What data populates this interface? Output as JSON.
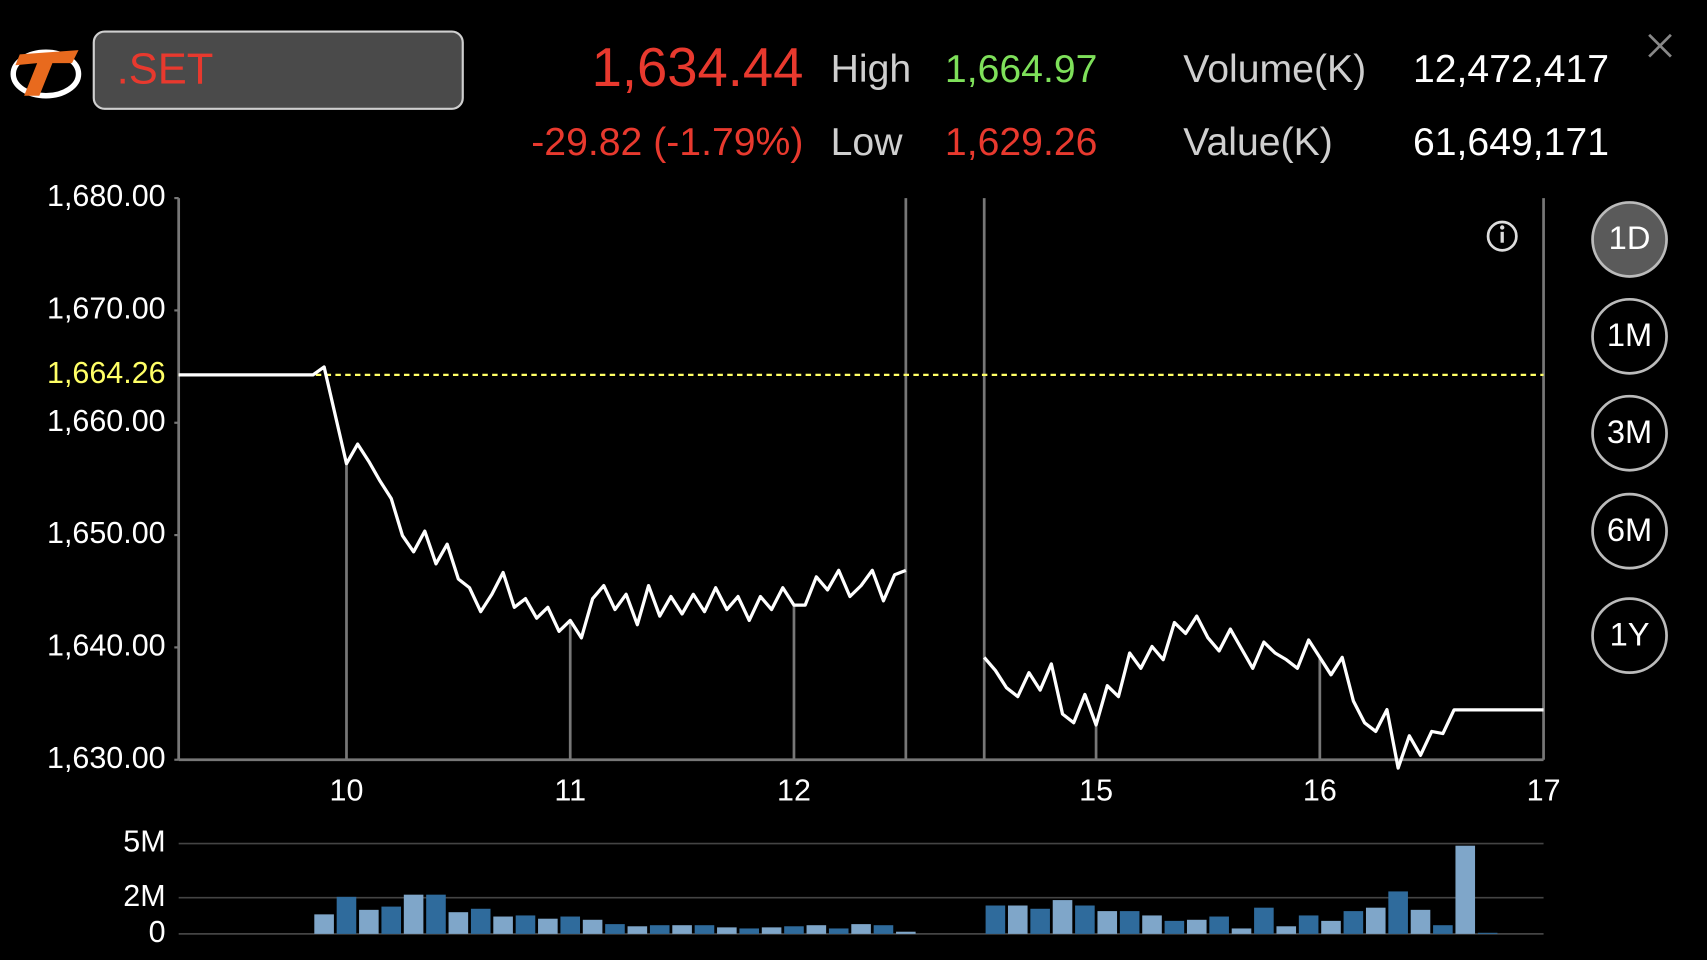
{
  "header": {
    "symbol": ".SET",
    "last": "1,634.44",
    "change": "-29.82 (-1.79%)",
    "high_label": "High",
    "high": "1,664.97",
    "low_label": "Low",
    "low": "1,629.26",
    "volume_label": "Volume(K)",
    "volume": "12,472,417",
    "value_label": "Value(K)",
    "value": "61,649,171"
  },
  "periods": [
    "1D",
    "1M",
    "3M",
    "6M",
    "1Y"
  ],
  "chart_data": [
    {
      "type": "line",
      "color": "#ffffff",
      "x": [
        9.25,
        9.85,
        9.9,
        10,
        10.05,
        10.1,
        10.15,
        10.2,
        10.25,
        10.3,
        10.35,
        10.4,
        10.45,
        10.5,
        10.55,
        10.6,
        10.65,
        10.7,
        10.75,
        10.8,
        10.85,
        10.9,
        10.95,
        11,
        11.05,
        11.1,
        11.15,
        11.2,
        11.25,
        11.3,
        11.35,
        11.4,
        11.45,
        11.5,
        11.55,
        11.6,
        11.65,
        11.7,
        11.75,
        11.8,
        11.85,
        11.9,
        11.95,
        12,
        12.05,
        12.1,
        12.15,
        12.2,
        12.25,
        12.3,
        12.35,
        12.4,
        12.45,
        12.5,
        13.5,
        14.5,
        14.55,
        14.6,
        14.65,
        14.7,
        14.75,
        14.8,
        14.85,
        14.9,
        14.95,
        15,
        15.05,
        15.1,
        15.15,
        15.2,
        15.25,
        15.3,
        15.35,
        15.4,
        15.45,
        15.5,
        15.55,
        15.6,
        15.65,
        15.7,
        15.75,
        15.8,
        15.85,
        15.9,
        15.95,
        16,
        16.05,
        16.1,
        16.15,
        16.2,
        16.25,
        16.3,
        16.35,
        16.4,
        16.45,
        16.5,
        16.55,
        16.6,
        17
      ],
      "values": [
        1664.26,
        1664.26,
        1664.97,
        1656.36,
        1658.1,
        1656.55,
        1654.81,
        1653.26,
        1649.96,
        1648.51,
        1650.35,
        1647.44,
        1649.19,
        1646.09,
        1645.31,
        1643.18,
        1644.73,
        1646.67,
        1643.57,
        1644.34,
        1642.6,
        1643.57,
        1641.43,
        1642.4,
        1640.85,
        1644.34,
        1645.5,
        1643.37,
        1644.73,
        1642.02,
        1645.5,
        1642.79,
        1644.53,
        1642.98,
        1644.73,
        1643.18,
        1645.31,
        1643.37,
        1644.53,
        1642.4,
        1644.53,
        1643.37,
        1645.31,
        1643.76,
        1643.76,
        1646.28,
        1645.12,
        1646.86,
        1644.53,
        1645.5,
        1646.86,
        1644.15,
        1646.47,
        1646.86,
        null,
        1639.11,
        1637.95,
        1636.4,
        1635.62,
        1637.75,
        1636.2,
        1638.53,
        1634.07,
        1633.29,
        1635.81,
        1633.1,
        1636.59,
        1635.62,
        1639.5,
        1638.14,
        1640.08,
        1638.91,
        1642.21,
        1641.24,
        1642.79,
        1640.85,
        1639.69,
        1641.63,
        1639.88,
        1638.14,
        1640.47,
        1639.5,
        1638.91,
        1638.14,
        1640.66,
        1639.11,
        1637.56,
        1639.11,
        1635.23,
        1633.29,
        1632.52,
        1634.46,
        1629.26,
        1632.13,
        1630.39,
        1632.52,
        1632.33,
        1634.44,
        1634.44
      ],
      "xlim": [
        9.25,
        17
      ],
      "xticks": [
        10,
        11,
        12,
        15,
        16,
        17
      ],
      "breaks": [
        [
          12.5,
          14.5
        ]
      ],
      "ylim": [
        1630,
        1680
      ],
      "yticks": [
        {
          "value": 1630,
          "label": "1,630.00"
        },
        {
          "value": 1640,
          "label": "1,640.00"
        },
        {
          "value": 1650,
          "label": "1,650.00"
        },
        {
          "value": 1660,
          "label": "1,660.00"
        },
        {
          "value": 1670,
          "label": "1,670.00"
        },
        {
          "value": 1680,
          "label": "1,680.00"
        }
      ],
      "reference_line": {
        "value": 1664.26,
        "label": "1,664.26",
        "color": "#ffff66"
      }
    },
    {
      "type": "bar",
      "colors": [
        "#7fa6c9",
        "#2f6b9c"
      ],
      "x": [
        9.9,
        10,
        10.1,
        10.2,
        10.3,
        10.4,
        10.5,
        10.6,
        10.7,
        10.8,
        10.9,
        11,
        11.1,
        11.2,
        11.3,
        11.4,
        11.5,
        11.6,
        11.7,
        11.8,
        11.9,
        12,
        12.1,
        12.2,
        12.3,
        12.4,
        12.5,
        14.55,
        14.65,
        14.75,
        14.85,
        14.95,
        15.05,
        15.15,
        15.25,
        15.35,
        15.45,
        15.55,
        15.65,
        15.75,
        15.85,
        15.95,
        16.05,
        16.15,
        16.25,
        16.35,
        16.45,
        16.55,
        16.65,
        16.75
      ],
      "values": [
        1080000,
        2050000,
        1330000,
        1510000,
        2170000,
        2170000,
        1200000,
        1390000,
        960000,
        1020000,
        840000,
        960000,
        780000,
        540000,
        420000,
        480000,
        480000,
        480000,
        360000,
        300000,
        360000,
        420000,
        480000,
        300000,
        540000,
        480000,
        120000,
        1570000,
        1570000,
        1390000,
        1870000,
        1570000,
        1260000,
        1260000,
        1020000,
        720000,
        780000,
        960000,
        300000,
        1450000,
        420000,
        1020000,
        720000,
        1260000,
        1450000,
        2350000,
        1330000,
        480000,
        4880000,
        60000
      ],
      "xlim": [
        9.25,
        17
      ],
      "breaks": [
        [
          12.5,
          14.5
        ]
      ],
      "ylim": [
        0,
        5000000
      ],
      "yticks": [
        0,
        {
          "value": 2000000,
          "label": "2M"
        },
        {
          "value": 5000000,
          "label": "5M"
        }
      ]
    }
  ]
}
